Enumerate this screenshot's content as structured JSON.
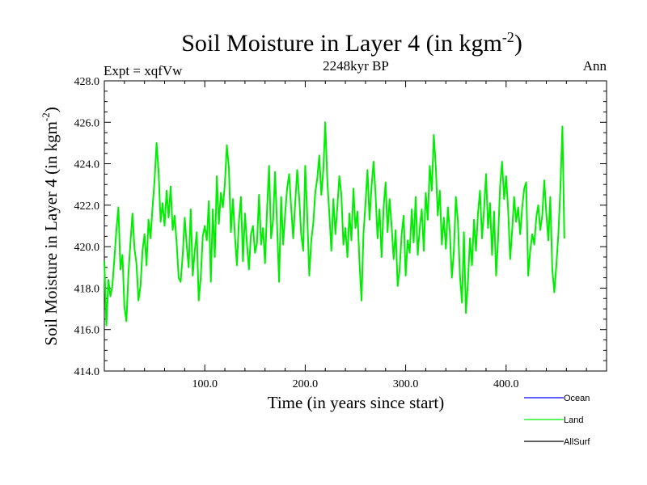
{
  "chart_data": {
    "type": "line",
    "title": "Soil Moisture in Layer 4 (in kgm",
    "title_sup": "-2",
    "title_close": ")",
    "subtitle": "2248kyr BP",
    "left_label": "Expt = xqfVw",
    "right_label": "Ann",
    "xlabel": "Time (in years since start)",
    "ylabel": "Soil Moisture in Layer 4 (in kgm",
    "ylabel_sup": "-2",
    "ylabel_close": ")",
    "xlim": [
      0,
      500
    ],
    "ylim": [
      414,
      428
    ],
    "x_ticks": [
      100,
      200,
      300,
      400
    ],
    "x_tick_labels": [
      "100.0",
      "200.0",
      "300.0",
      "400.0"
    ],
    "y_ticks": [
      414,
      416,
      418,
      420,
      422,
      424,
      426,
      428
    ],
    "y_tick_labels": [
      "414.0",
      "416.0",
      "418.0",
      "420.0",
      "422.0",
      "424.0",
      "426.0",
      "428.0"
    ],
    "series": [
      {
        "name": "Land",
        "color": "#00ee00",
        "x_start": 0,
        "x_step": 2,
        "values": [
          419.3,
          416.2,
          418.4,
          417.6,
          418.1,
          419.4,
          420.8,
          421.9,
          418.9,
          419.6,
          417.1,
          416.4,
          418.7,
          420.2,
          421.6,
          419.9,
          419.2,
          417.4,
          418.1,
          419.8,
          420.6,
          419.1,
          421.3,
          420.4,
          421.9,
          423.2,
          425.0,
          423.6,
          421.2,
          422.1,
          421.0,
          422.7,
          421.4,
          422.9,
          420.8,
          421.5,
          420.2,
          418.5,
          418.3,
          419.6,
          421.4,
          420.1,
          419.0,
          421.8,
          418.6,
          419.8,
          420.7,
          417.4,
          418.5,
          420.5,
          421.0,
          420.3,
          422.2,
          418.3,
          421.8,
          419.5,
          423.4,
          421.1,
          422.6,
          421.9,
          423.0,
          424.9,
          423.8,
          420.7,
          422.3,
          420.5,
          419.1,
          421.2,
          422.4,
          419.3,
          421.6,
          420.1,
          418.9,
          420.6,
          421.0,
          419.7,
          420.2,
          422.5,
          420.1,
          420.9,
          419.2,
          421.8,
          423.9,
          420.4,
          421.3,
          423.6,
          421.0,
          418.3,
          422.4,
          420.1,
          421.6,
          422.8,
          423.5,
          421.9,
          420.4,
          422.1,
          423.7,
          422.4,
          420.6,
          419.8,
          423.9,
          421.5,
          418.6,
          420.3,
          421.1,
          422.6,
          423.3,
          424.4,
          422.5,
          423.7,
          426.0,
          423.2,
          421.6,
          419.8,
          422.3,
          420.6,
          421.9,
          423.4,
          422.5,
          420.1,
          420.9,
          419.5,
          421.6,
          420.3,
          422.8,
          420.9,
          421.7,
          419.2,
          417.4,
          420.6,
          422.1,
          423.7,
          421.3,
          422.9,
          424.1,
          422.6,
          420.4,
          421.8,
          419.5,
          421.9,
          423.1,
          420.7,
          422.3,
          421.0,
          419.4,
          420.8,
          418.1,
          418.9,
          420.6,
          421.5,
          418.6,
          420.3,
          419.7,
          421.8,
          420.2,
          422.4,
          419.6,
          420.9,
          421.8,
          419.8,
          422.6,
          421.3,
          423.9,
          422.7,
          425.4,
          423.8,
          421.5,
          422.7,
          420.1,
          421.4,
          419.9,
          421.9,
          420.7,
          418.5,
          419.8,
          422.4,
          421.2,
          418.6,
          417.3,
          420.7,
          416.8,
          418.3,
          420.4,
          419.1,
          421.3,
          419.8,
          421.6,
          422.7,
          420.4,
          421.8,
          423.5,
          420.9,
          422.1,
          419.6,
          421.7,
          418.6,
          420.4,
          422.9,
          424.1,
          422.3,
          423.4,
          421.8,
          419.4,
          420.8,
          422.4,
          421.2,
          421.9,
          420.6,
          421.9,
          422.8,
          423.1,
          418.6,
          419.8,
          420.6,
          420.1,
          421.4,
          422.0,
          420.8,
          421.5,
          423.2,
          421.6,
          420.3,
          422.4,
          418.9,
          417.8,
          419.1,
          420.6,
          422.8,
          425.8,
          420.4
        ]
      }
    ],
    "legend": [
      {
        "label": "Ocean",
        "color": "#0000ff"
      },
      {
        "label": "Land",
        "color": "#00ee00"
      },
      {
        "label": "AllSurf",
        "color": "#000000"
      }
    ]
  }
}
